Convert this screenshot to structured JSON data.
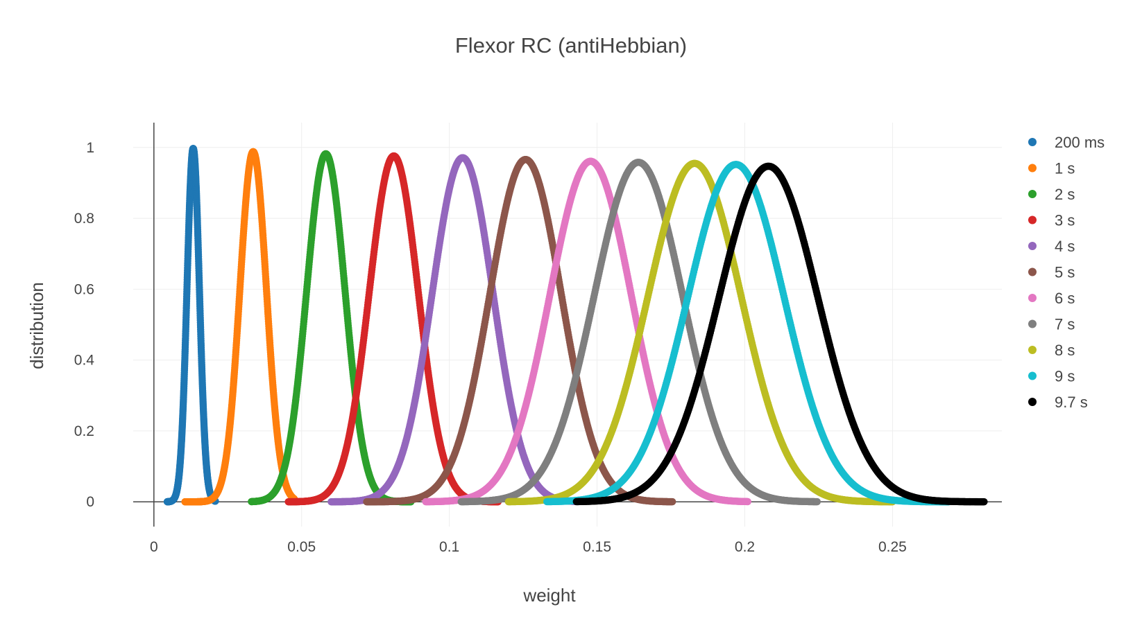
{
  "chart_data": {
    "type": "scatter",
    "title": "Flexor RC (antiHebbian)",
    "xlabel": "weight",
    "ylabel": "distribution",
    "xlim": [
      -0.007,
      0.287
    ],
    "ylim": [
      -0.07,
      1.07
    ],
    "x_ticks": [
      0,
      0.05,
      0.1,
      0.15,
      0.2,
      0.25
    ],
    "x_tick_labels": [
      "0",
      "0.05",
      "0.1",
      "0.15",
      "0.2",
      "0.25"
    ],
    "y_ticks": [
      0,
      0.2,
      0.4,
      0.6,
      0.8,
      1
    ],
    "y_tick_labels": [
      "0",
      "0.2",
      "0.4",
      "0.6",
      "0.8",
      "1"
    ],
    "grid": true,
    "legend_position": "right",
    "marker": "circle",
    "series": [
      {
        "name": "200 ms",
        "color": "#1f77b4",
        "mean": 0.0133,
        "sd": 0.0021,
        "peak": 0.997,
        "xmin": 0.0045,
        "xmax": 0.0208
      },
      {
        "name": "1 s",
        "color": "#ff7f0e",
        "mean": 0.0336,
        "sd": 0.0045,
        "peak": 0.988,
        "xmin": 0.0105,
        "xmax": 0.0475
      },
      {
        "name": "2 s",
        "color": "#2ca02c",
        "mean": 0.0582,
        "sd": 0.0065,
        "peak": 0.982,
        "xmin": 0.033,
        "xmax": 0.087
      },
      {
        "name": "3 s",
        "color": "#d62728",
        "mean": 0.0812,
        "sd": 0.0083,
        "peak": 0.976,
        "xmin": 0.0455,
        "xmax": 0.1165
      },
      {
        "name": "4 s",
        "color": "#9467bd",
        "mean": 0.1045,
        "sd": 0.0103,
        "peak": 0.971,
        "xmin": 0.06,
        "xmax": 0.144
      },
      {
        "name": "5 s",
        "color": "#8c564b",
        "mean": 0.1258,
        "sd": 0.0121,
        "peak": 0.966,
        "xmin": 0.072,
        "xmax": 0.1755
      },
      {
        "name": "6 s",
        "color": "#e377c2",
        "mean": 0.1478,
        "sd": 0.0138,
        "peak": 0.961,
        "xmin": 0.092,
        "xmax": 0.201
      },
      {
        "name": "7 s",
        "color": "#7f7f7f",
        "mean": 0.164,
        "sd": 0.015,
        "peak": 0.958,
        "xmin": 0.104,
        "xmax": 0.2245
      },
      {
        "name": "8 s",
        "color": "#bcbd22",
        "mean": 0.183,
        "sd": 0.0158,
        "peak": 0.955,
        "xmin": 0.12,
        "xmax": 0.25
      },
      {
        "name": "9 s",
        "color": "#17becf",
        "mean": 0.197,
        "sd": 0.0163,
        "peak": 0.952,
        "xmin": 0.133,
        "xmax": 0.269
      },
      {
        "name": "9.7 s",
        "color": "#000000",
        "mean": 0.208,
        "sd": 0.0168,
        "peak": 0.947,
        "xmin": 0.143,
        "xmax": 0.281
      }
    ]
  }
}
